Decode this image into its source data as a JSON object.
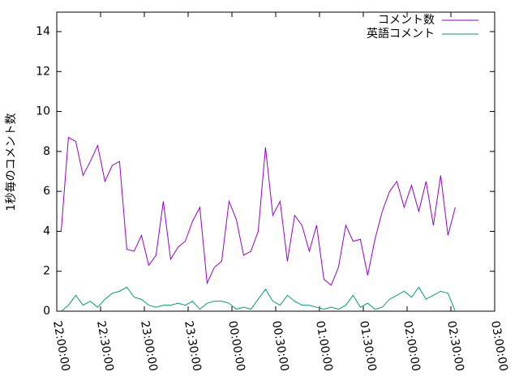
{
  "chart_data": {
    "type": "line",
    "ylabel": "1秒毎のコメント数",
    "x": [
      "22:03:00",
      "22:08:00",
      "22:13:00",
      "22:18:00",
      "22:23:00",
      "22:28:00",
      "22:33:00",
      "22:38:00",
      "22:43:00",
      "22:48:00",
      "22:53:00",
      "22:58:00",
      "23:03:00",
      "23:08:00",
      "23:13:00",
      "23:18:00",
      "23:23:00",
      "23:28:00",
      "23:33:00",
      "23:38:00",
      "23:43:00",
      "23:48:00",
      "23:53:00",
      "23:58:00",
      "00:03:00",
      "00:08:00",
      "00:13:00",
      "00:18:00",
      "00:23:00",
      "00:28:00",
      "00:33:00",
      "00:38:00",
      "00:43:00",
      "00:48:00",
      "00:53:00",
      "00:58:00",
      "01:03:00",
      "01:08:00",
      "01:13:00",
      "01:18:00",
      "01:23:00",
      "01:28:00",
      "01:33:00",
      "01:38:00",
      "01:43:00",
      "01:48:00",
      "01:53:00",
      "01:58:00",
      "02:03:00",
      "02:08:00",
      "02:13:00",
      "02:18:00",
      "02:23:00",
      "02:28:00",
      "02:33:00"
    ],
    "series": [
      {
        "name": "コメント数",
        "color": "#9400d3",
        "values": [
          4.0,
          8.7,
          8.5,
          6.8,
          7.5,
          8.3,
          6.5,
          7.3,
          7.5,
          3.1,
          3.0,
          3.8,
          2.3,
          2.8,
          5.5,
          2.6,
          3.2,
          3.5,
          4.5,
          5.2,
          1.4,
          2.2,
          2.5,
          5.5,
          4.6,
          2.8,
          3.0,
          4.0,
          8.2,
          4.8,
          5.5,
          2.5,
          4.8,
          4.3,
          3.0,
          4.3,
          1.6,
          1.3,
          2.2,
          4.3,
          3.5,
          3.6,
          1.8,
          3.6,
          5.0,
          6.0,
          6.5,
          5.2,
          6.3,
          5.0,
          6.5,
          4.3,
          6.8,
          3.8,
          5.2
        ]
      },
      {
        "name": "英語コメント",
        "color": "#009e73",
        "values": [
          0,
          0.3,
          0.8,
          0.3,
          0.5,
          0.2,
          0.6,
          0.9,
          1.0,
          1.2,
          0.7,
          0.6,
          0.3,
          0.2,
          0.3,
          0.3,
          0.4,
          0.3,
          0.5,
          0.1,
          0.4,
          0.5,
          0.5,
          0.4,
          0.1,
          0.2,
          0.1,
          0.6,
          1.1,
          0.5,
          0.3,
          0.8,
          0.5,
          0.3,
          0.3,
          0.2,
          0.1,
          0.2,
          0.1,
          0.3,
          0.8,
          0.2,
          0.4,
          0.1,
          0.2,
          0.6,
          0.8,
          1.0,
          0.7,
          1.2,
          0.6,
          0.8,
          1.0,
          0.9,
          0
        ]
      }
    ],
    "xlim": [
      "22:00:00",
      "03:00:00"
    ],
    "xticks": [
      "22:00:00",
      "22:30:00",
      "23:00:00",
      "23:30:00",
      "00:00:00",
      "00:30:00",
      "01:00:00",
      "01:30:00",
      "02:00:00",
      "02:30:00",
      "03:00:00"
    ],
    "ylim": [
      0,
      14
    ],
    "yticks": [
      0,
      2,
      4,
      6,
      8,
      10,
      12,
      14
    ],
    "legend": "upper right"
  }
}
